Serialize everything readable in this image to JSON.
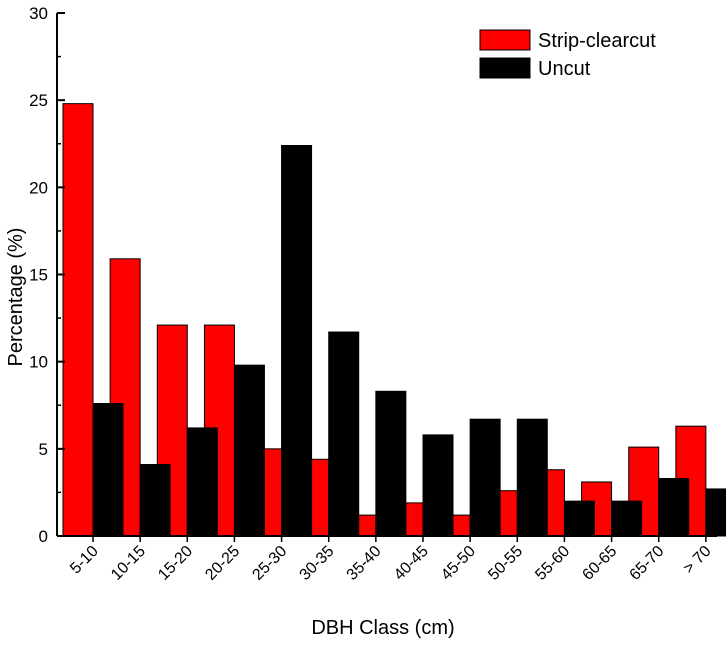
{
  "chart_data": {
    "type": "bar",
    "title": "",
    "xlabel": "DBH Class (cm)",
    "ylabel": "Percentage (%)",
    "ylim": [
      0,
      30
    ],
    "yticks": [
      0,
      5,
      10,
      15,
      20,
      25,
      30
    ],
    "grid": false,
    "legend_position": "top-right",
    "categories": [
      "5-10",
      "10-15",
      "15-20",
      "20-25",
      "25-30",
      "30-35",
      "35-40",
      "40-45",
      "45-50",
      "50-55",
      "55-60",
      "60-65",
      "65-70",
      "˃ 70"
    ],
    "series": [
      {
        "name": "Strip-clearcut",
        "color": "#ff0000",
        "values": [
          24.8,
          15.9,
          12.1,
          12.1,
          5.0,
          4.4,
          1.2,
          1.9,
          1.2,
          2.6,
          3.8,
          3.1,
          5.1,
          6.3
        ]
      },
      {
        "name": "Uncut",
        "color": "#000000",
        "values": [
          7.6,
          4.1,
          6.2,
          9.8,
          22.4,
          11.7,
          8.3,
          5.8,
          6.7,
          6.7,
          2.0,
          2.0,
          3.3,
          2.7
        ]
      }
    ]
  }
}
